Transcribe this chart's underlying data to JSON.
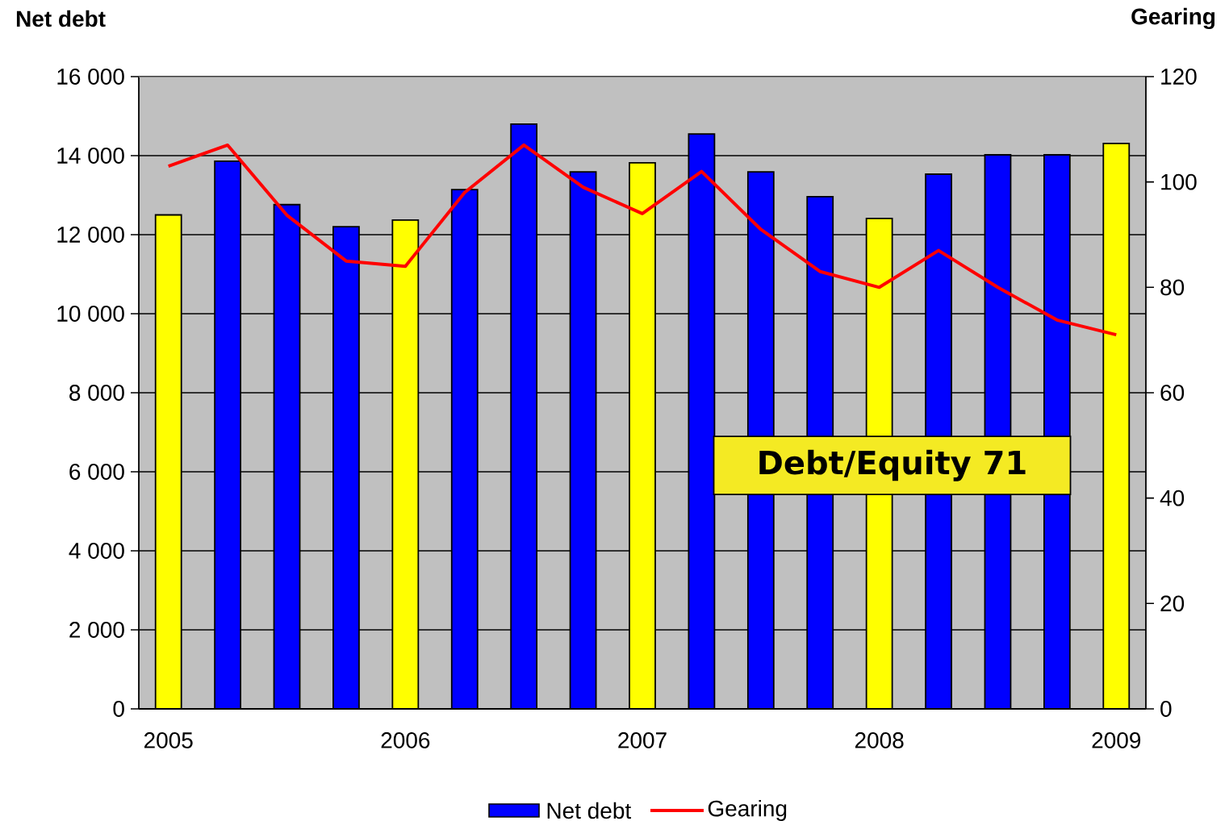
{
  "chart_data": {
    "type": "bar",
    "categories": [
      "2005",
      null,
      null,
      null,
      "2006",
      null,
      null,
      null,
      "2007",
      null,
      null,
      null,
      "2008",
      null,
      null,
      null,
      "2009"
    ],
    "series": [
      {
        "name": "Net debt",
        "color": "#0000ff",
        "colors": [
          "#ffff00",
          "#0000ff",
          "#0000ff",
          "#0000ff",
          "#ffff00",
          "#0000ff",
          "#0000ff",
          "#0000ff",
          "#ffff00",
          "#0000ff",
          "#0000ff",
          "#0000ff",
          "#ffff00",
          "#0000ff",
          "#0000ff",
          "#0000ff",
          "#ffff00"
        ],
        "values": [
          12500,
          13860,
          12760,
          12200,
          12370,
          13140,
          14800,
          13590,
          13820,
          14550,
          13590,
          12960,
          12410,
          13530,
          14020,
          14020,
          14310
        ]
      },
      {
        "name": "Gearing",
        "type": "line",
        "axis": "y2",
        "color": "#ff0000",
        "values": [
          103,
          107,
          93.7,
          85,
          84,
          98,
          107,
          99,
          94,
          102,
          91,
          83,
          80,
          87,
          80,
          73.8,
          71
        ]
      }
    ],
    "ylabel": "Net debt",
    "y2label": "Gearing",
    "ylim": [
      0,
      16000
    ],
    "yticks": [
      0,
      {
        "value": 2000,
        "label": "2 000"
      },
      {
        "value": 4000,
        "label": "4 000"
      },
      {
        "value": 6000,
        "label": "6 000"
      },
      {
        "value": 8000,
        "label": "8 000"
      },
      {
        "value": 10000,
        "label": "10 000"
      },
      {
        "value": 12000,
        "label": "12 000"
      },
      {
        "value": 14000,
        "label": "14 000"
      },
      {
        "value": 16000,
        "label": "16 000"
      }
    ],
    "y2lim": [
      0,
      120
    ],
    "y2ticks": [
      0,
      20,
      40,
      60,
      80,
      100,
      120
    ],
    "grid": "y",
    "legend": "bottom",
    "annotations": [
      "Debt/Equity 71"
    ]
  }
}
